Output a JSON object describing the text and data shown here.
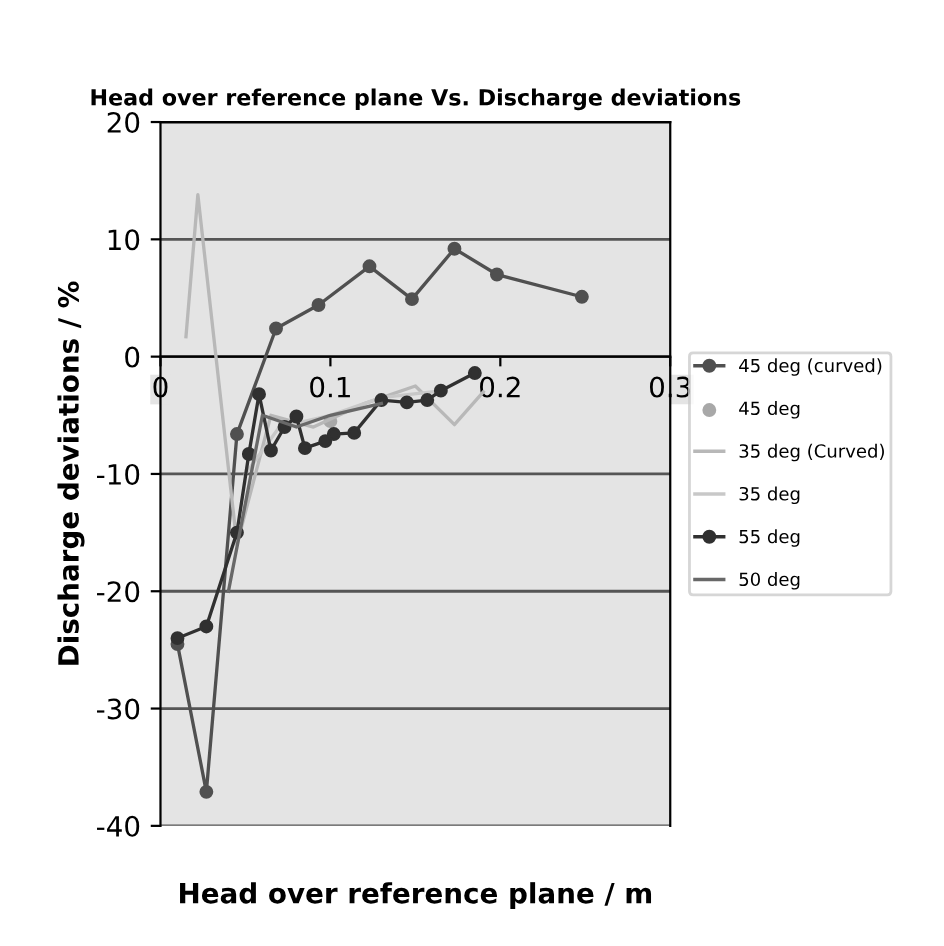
{
  "chart_data": {
    "type": "line",
    "title": "Head over reference plane Vs. Discharge deviations",
    "xlabel": "Head over reference plane / m",
    "ylabel": "Discharge deviations / %",
    "xlim": [
      0,
      0.3
    ],
    "xticks": [
      0,
      0.1,
      0.2,
      0.3
    ],
    "ylim": [
      -40,
      20
    ],
    "yticks": [
      -40,
      -30,
      -20,
      -10,
      0,
      10,
      20
    ],
    "grid": "y",
    "legend": "right",
    "series": [
      {
        "name": "45 deg (curved)",
        "color": "#505050",
        "marker": "circle",
        "x": [
          0.01,
          0.027,
          0.045,
          0.068,
          0.093,
          0.123,
          0.148,
          0.173,
          0.198,
          0.248
        ],
        "values": [
          -24.5,
          -37.1,
          -6.6,
          2.4,
          4.4,
          7.7,
          4.9,
          9.2,
          7.0,
          5.1
        ]
      },
      {
        "name": "45 deg",
        "type": "scatter",
        "color": "#a8a8a8",
        "marker": "circle",
        "x": [
          0.1
        ],
        "values": [
          -5.5
        ]
      },
      {
        "name": "35 deg (Curved)",
        "color": "#b8b8b8",
        "marker": "none",
        "x": [
          0.015,
          0.022,
          0.045,
          0.065,
          0.09,
          0.12,
          0.15,
          0.173,
          0.19
        ],
        "values": [
          1.7,
          13.8,
          -16.0,
          -5.0,
          -6.0,
          -4.0,
          -2.5,
          -5.8,
          -3.0
        ]
      },
      {
        "name": "35 deg",
        "color": "#c8c8c8",
        "marker": "none",
        "x": [
          0.05,
          0.07,
          0.1,
          0.13,
          0.16
        ],
        "values": [
          -10.0,
          -6.0,
          -5.0,
          -3.5,
          -3.0
        ]
      },
      {
        "name": "55 deg",
        "color": "#303030",
        "marker": "circle",
        "x": [
          0.01,
          0.027,
          0.045,
          0.052,
          0.058,
          0.065,
          0.073,
          0.08,
          0.085,
          0.097,
          0.102,
          0.114,
          0.13,
          0.145,
          0.157,
          0.165,
          0.185
        ],
        "values": [
          -24.0,
          -23.0,
          -15.0,
          -8.3,
          -3.2,
          -8.0,
          -6.0,
          -5.1,
          -7.8,
          -7.2,
          -6.6,
          -6.5,
          -3.7,
          -3.9,
          -3.7,
          -2.9,
          -1.4
        ]
      },
      {
        "name": "50 deg",
        "color": "#686868",
        "marker": "none",
        "x": [
          0.04,
          0.06,
          0.08,
          0.1,
          0.13
        ],
        "values": [
          -20.0,
          -5.0,
          -6.0,
          -5.0,
          -4.0
        ]
      }
    ]
  }
}
